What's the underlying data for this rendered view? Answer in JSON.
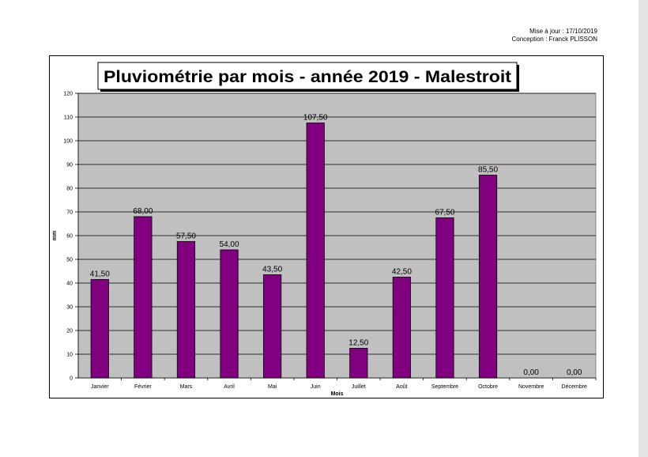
{
  "header": {
    "update_line": "Mise à jour : 17/10/2019",
    "author_line": "Conception : Franck PLISSON"
  },
  "chart_data": {
    "type": "bar",
    "title": "Pluviométrie par mois - année 2019 - Malestroit",
    "xlabel": "Mois",
    "ylabel": "mm",
    "categories": [
      "Janvier",
      "Février",
      "Mars",
      "Avril",
      "Mai",
      "Juin",
      "Juillet",
      "Août",
      "Septembre",
      "Octobre",
      "Novembre",
      "Décembre"
    ],
    "values": [
      41.5,
      68.0,
      57.5,
      54.0,
      43.5,
      107.5,
      12.5,
      42.5,
      67.5,
      85.5,
      0.0,
      0.0
    ],
    "value_labels": [
      "41,50",
      "68,00",
      "57,50",
      "54,00",
      "43,50",
      "107,50",
      "12,50",
      "42,50",
      "67,50",
      "85,50",
      "0,00",
      "0,00"
    ],
    "ylim": [
      0,
      120
    ],
    "yticks": [
      0,
      10,
      20,
      30,
      40,
      50,
      60,
      70,
      80,
      90,
      100,
      110,
      120
    ],
    "grid": true,
    "legend": "none",
    "colors": {
      "bar": "#800080",
      "plot_background": "#c0c0c0",
      "gridline": "#000000"
    }
  }
}
